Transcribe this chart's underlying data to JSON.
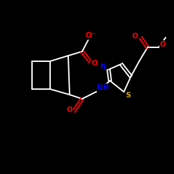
{
  "background_color": "#000000",
  "bond_color": "#ffffff",
  "atom_colors": {
    "O": "#ff0000",
    "N": "#0000ff",
    "S": "#ccaa00"
  },
  "figure_size": [
    2.5,
    2.5
  ],
  "dpi": 100
}
